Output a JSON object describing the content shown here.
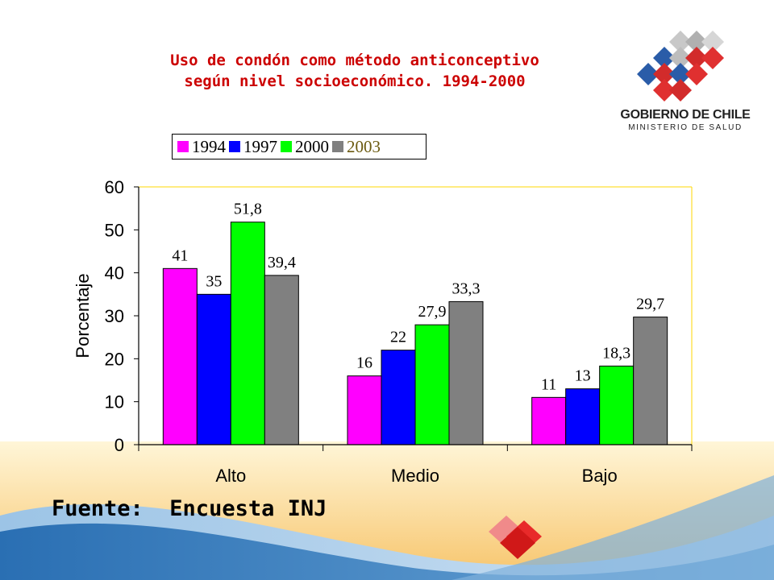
{
  "title_line1": "Uso de condón como método anticonceptivo",
  "title_line2": "según nivel socioeconómico. 1994-2000",
  "logo": {
    "line1": "GOBIERNO DE CHILE",
    "line2": "MINISTERIO DE SALUD"
  },
  "source": "Fuente:  Encuesta INJ",
  "colors": {
    "1994": "#ff00ff",
    "1997": "#0000ff",
    "2000": "#00ff00",
    "2003": "#808080",
    "title": "#cc0000",
    "plot_border": "#ffd700"
  },
  "chart_data": {
    "type": "bar",
    "categories": [
      "Alto",
      "Medio",
      "Bajo"
    ],
    "series": [
      {
        "name": "1994",
        "values": [
          41,
          16,
          11
        ],
        "labels": [
          "41",
          "16",
          "11"
        ]
      },
      {
        "name": "1997",
        "values": [
          35,
          22,
          13
        ],
        "labels": [
          "35",
          "22",
          "13"
        ]
      },
      {
        "name": "2000",
        "values": [
          51.8,
          27.9,
          18.3
        ],
        "labels": [
          "51,8",
          "27,9",
          "18,3"
        ]
      },
      {
        "name": "2003",
        "values": [
          39.4,
          33.3,
          29.7
        ],
        "labels": [
          "39,4",
          "33,3",
          "29,7"
        ]
      }
    ],
    "ylabel": "Porcentaje",
    "ylim": [
      0,
      60
    ],
    "yticks": [
      0,
      10,
      20,
      30,
      40,
      50,
      60
    ],
    "grid": false,
    "legend_position": "top"
  }
}
